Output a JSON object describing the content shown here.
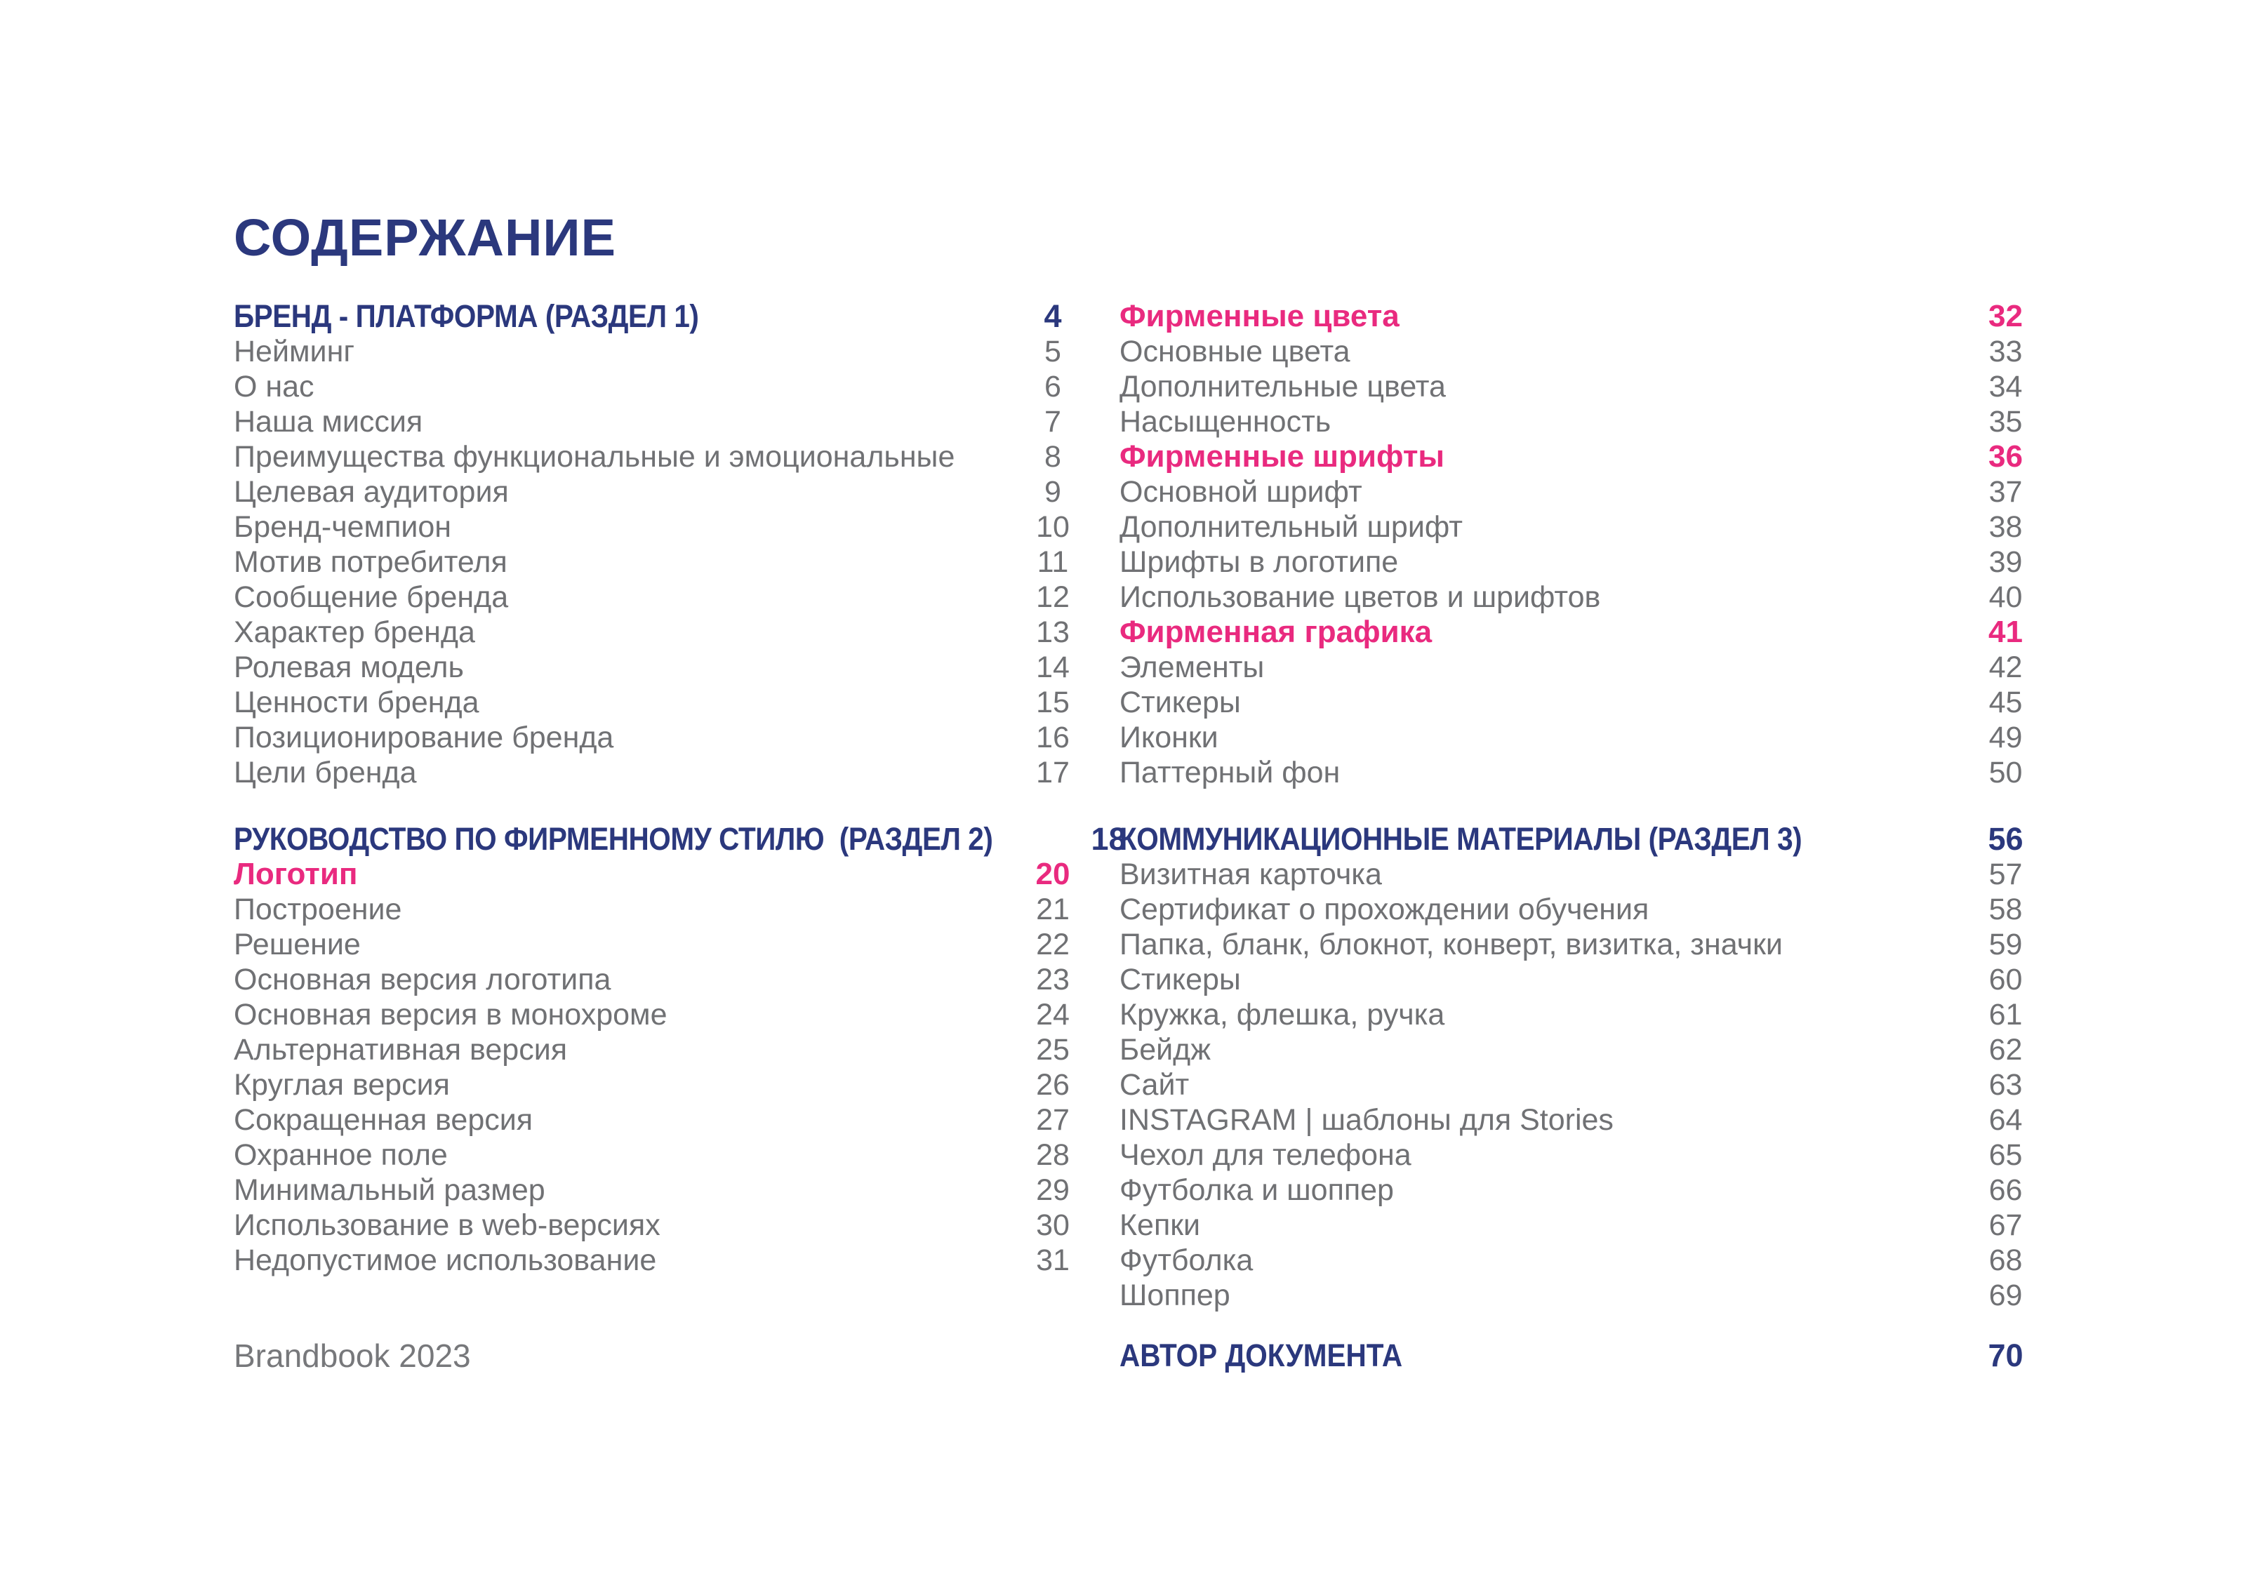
{
  "title": "СОДЕРЖАНИЕ",
  "footer_left": "Brandbook 2023",
  "footer_right": {
    "label": "АВТОР ДОКУМЕНТА",
    "page": "70"
  },
  "colors": {
    "navy": "#2b387d",
    "pink": "#e92a7f",
    "gray": "#707174",
    "background": "#ffffff"
  },
  "columns": [
    {
      "id": "left",
      "rows": [
        {
          "type": "section",
          "label": "БРЕНД - ПЛАТФОРМА (РАЗДЕЛ 1)",
          "page": "4"
        },
        {
          "type": "item",
          "label": "Нейминг",
          "page": "5"
        },
        {
          "type": "item",
          "label": "О нас",
          "page": "6"
        },
        {
          "type": "item",
          "label": "Наша миссия",
          "page": "7"
        },
        {
          "type": "item",
          "label": "Преимущества функциональные и эмоциональные",
          "page": "8"
        },
        {
          "type": "item",
          "label": "Целевая аудитория",
          "page": "9"
        },
        {
          "type": "item",
          "label": "Бренд-чемпион",
          "page": "10"
        },
        {
          "type": "item",
          "label": "Мотив потребителя",
          "page": "11"
        },
        {
          "type": "item",
          "label": "Сообщение бренда",
          "page": "12"
        },
        {
          "type": "item",
          "label": "Характер бренда",
          "page": "13"
        },
        {
          "type": "item",
          "label": "Ролевая модель",
          "page": "14"
        },
        {
          "type": "item",
          "label": "Ценности бренда",
          "page": "15"
        },
        {
          "type": "item",
          "label": "Позиционирование бренда",
          "page": "16"
        },
        {
          "type": "item",
          "label": "Цели бренда",
          "page": "17"
        },
        {
          "type": "spacer"
        },
        {
          "type": "section",
          "label": "РУКОВОДСТВО ПО ФИРМЕННОМУ СТИЛЮ  (РАЗДЕЛ 2)",
          "page": "18"
        },
        {
          "type": "accent",
          "label": "Логотип",
          "page": "20"
        },
        {
          "type": "item",
          "label": "Построение",
          "page": "21"
        },
        {
          "type": "item",
          "label": "Решение",
          "page": "22"
        },
        {
          "type": "item",
          "label": "Основная версия логотипа",
          "page": "23"
        },
        {
          "type": "item",
          "label": "Основная версия в монохроме",
          "page": "24"
        },
        {
          "type": "item",
          "label": "Альтернативная версия",
          "page": "25"
        },
        {
          "type": "item",
          "label": "Круглая версия",
          "page": "26"
        },
        {
          "type": "item",
          "label": "Сокращенная версия",
          "page": "27"
        },
        {
          "type": "item",
          "label": "Охранное поле",
          "page": "28"
        },
        {
          "type": "item",
          "label": "Минимальный размер",
          "page": "29"
        },
        {
          "type": "item",
          "label": "Использование в web-версиях",
          "page": "30"
        },
        {
          "type": "item",
          "label": "Недопустимое использование",
          "page": "31"
        }
      ]
    },
    {
      "id": "right",
      "rows": [
        {
          "type": "accent",
          "label": "Фирменные цвета",
          "page": "32"
        },
        {
          "type": "item",
          "label": "Основные цвета",
          "page": "33"
        },
        {
          "type": "item",
          "label": "Дополнительные цвета",
          "page": "34"
        },
        {
          "type": "item",
          "label": "Насыщенность",
          "page": "35"
        },
        {
          "type": "accent",
          "label": "Фирменные шрифты",
          "page": "36"
        },
        {
          "type": "item",
          "label": "Основной шрифт",
          "page": "37"
        },
        {
          "type": "item",
          "label": "Дополнительный шрифт",
          "page": "38"
        },
        {
          "type": "item",
          "label": "Шрифты в логотипе",
          "page": "39"
        },
        {
          "type": "item",
          "label": "Использование цветов и шрифтов",
          "page": "40"
        },
        {
          "type": "accent",
          "label": "Фирменная графика",
          "page": "41"
        },
        {
          "type": "item",
          "label": "Элементы",
          "page": "42"
        },
        {
          "type": "item",
          "label": "Стикеры",
          "page": "45"
        },
        {
          "type": "item",
          "label": "Иконки",
          "page": "49"
        },
        {
          "type": "item",
          "label": "Паттерный фон",
          "page": "50"
        },
        {
          "type": "spacer"
        },
        {
          "type": "section",
          "label": "КОММУНИКАЦИОННЫЕ МАТЕРИАЛЫ (РАЗДЕЛ 3)",
          "page": "56"
        },
        {
          "type": "item",
          "label": "Визитная карточка",
          "page": "57"
        },
        {
          "type": "item",
          "label": "Сертификат о прохождении обучения",
          "page": "58"
        },
        {
          "type": "item",
          "label": "Папка, бланк, блокнот, конверт, визитка, значки",
          "page": "59"
        },
        {
          "type": "item",
          "label": "Стикеры",
          "page": "60"
        },
        {
          "type": "item",
          "label": "Кружка, флешка, ручка",
          "page": "61"
        },
        {
          "type": "item",
          "label": "Бейдж",
          "page": "62"
        },
        {
          "type": "item",
          "label": "Сайт",
          "page": "63"
        },
        {
          "type": "item",
          "label": "INSTAGRAM | шаблоны для Stories",
          "page": "64"
        },
        {
          "type": "item",
          "label": "Чехол для телефона",
          "page": "65"
        },
        {
          "type": "item",
          "label": "Футболка и шоппер",
          "page": "66"
        },
        {
          "type": "item",
          "label": "Кепки",
          "page": "67"
        },
        {
          "type": "item",
          "label": "Футболка",
          "page": "68"
        },
        {
          "type": "item",
          "label": "Шоппер",
          "page": "69"
        }
      ]
    }
  ]
}
